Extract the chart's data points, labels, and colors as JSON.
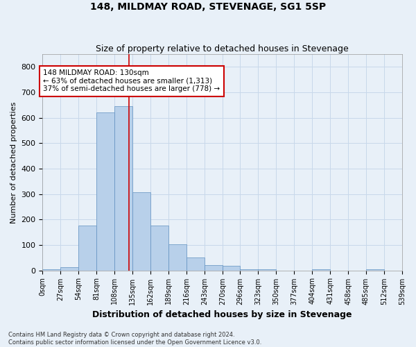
{
  "title": "148, MILDMAY ROAD, STEVENAGE, SG1 5SP",
  "subtitle": "Size of property relative to detached houses in Stevenage",
  "xlabel": "Distribution of detached houses by size in Stevenage",
  "ylabel": "Number of detached properties",
  "annotation_line1": "148 MILDMAY ROAD: 130sqm",
  "annotation_line2": "← 63% of detached houses are smaller (1,313)",
  "annotation_line3": "37% of semi-detached houses are larger (778) →",
  "bin_edges": [
    0,
    27,
    54,
    81,
    108,
    135,
    162,
    189,
    216,
    243,
    270,
    296,
    323,
    350,
    377,
    404,
    431,
    458,
    485,
    512,
    539
  ],
  "bar_heights": [
    5,
    12,
    175,
    620,
    645,
    308,
    175,
    103,
    50,
    20,
    18,
    5,
    5,
    0,
    0,
    5,
    0,
    0,
    5,
    0
  ],
  "bar_color": "#b8d0ea",
  "bar_edgecolor": "#6090c0",
  "vline_color": "#cc0000",
  "vline_x": 130,
  "annotation_box_edgecolor": "#cc0000",
  "annotation_box_facecolor": "#ffffff",
  "grid_color": "#c8d8ea",
  "bg_color": "#e8f0f8",
  "ylim": [
    0,
    850
  ],
  "yticks": [
    0,
    100,
    200,
    300,
    400,
    500,
    600,
    700,
    800
  ],
  "footer_line1": "Contains HM Land Registry data © Crown copyright and database right 2024.",
  "footer_line2": "Contains public sector information licensed under the Open Government Licence v3.0."
}
